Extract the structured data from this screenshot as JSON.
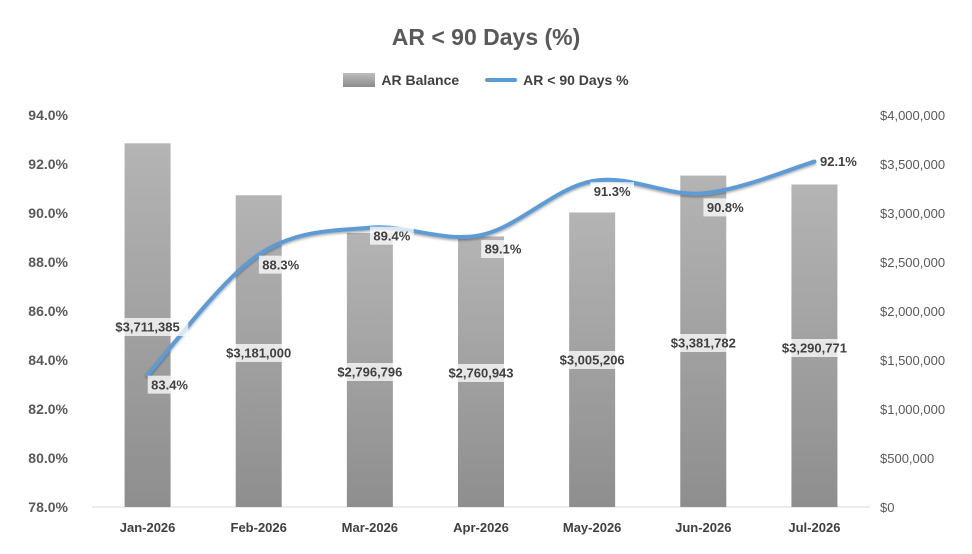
{
  "chart_data": {
    "type": "bar",
    "title": "AR < 90 Days (%)",
    "categories": [
      "Jan-2026",
      "Feb-2026",
      "Mar-2026",
      "Apr-2026",
      "May-2026",
      "Jun-2026",
      "Jul-2026"
    ],
    "series": [
      {
        "name": "AR Balance",
        "type": "bar",
        "axis": "right",
        "values": [
          3711385,
          3181000,
          2796796,
          2760943,
          3005206,
          3381782,
          3290771
        ],
        "labels": [
          "$3,711,385",
          "$3,181,000",
          "$2,796,796",
          "$2,760,943",
          "$3,005,206",
          "$3,381,782",
          "$3,290,771"
        ]
      },
      {
        "name": "AR < 90 Days %",
        "type": "line",
        "axis": "left",
        "values": [
          83.4,
          88.3,
          89.4,
          89.1,
          91.3,
          90.8,
          92.1
        ],
        "labels": [
          "83.4%",
          "88.3%",
          "89.4%",
          "89.1%",
          "91.3%",
          "90.8%",
          "92.1%"
        ]
      }
    ],
    "y_left": {
      "range": [
        78,
        94
      ],
      "ticks": [
        "78.0%",
        "80.0%",
        "82.0%",
        "84.0%",
        "86.0%",
        "88.0%",
        "90.0%",
        "92.0%",
        "94.0%"
      ]
    },
    "y_right": {
      "range": [
        0,
        4000000
      ],
      "ticks": [
        "$0",
        "$500,000",
        "$1,000,000",
        "$1,500,000",
        "$2,000,000",
        "$2,500,000",
        "$3,000,000",
        "$3,500,000",
        "$4,000,000"
      ]
    },
    "legend_position": "top",
    "grid": false,
    "colors": {
      "bar": "#a6a6a6",
      "line": "#5b9bd5"
    }
  }
}
